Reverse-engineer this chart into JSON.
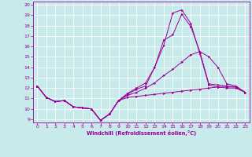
{
  "xlabel": "Windchill (Refroidissement éolien,°C)",
  "background_color": "#c8eaea",
  "line_color": "#990099",
  "grid_color": "#ffffff",
  "xlim": [
    -0.5,
    23.5
  ],
  "ylim": [
    8.7,
    20.3
  ],
  "yticks": [
    9,
    10,
    11,
    12,
    13,
    14,
    15,
    16,
    17,
    18,
    19,
    20
  ],
  "xticks": [
    0,
    1,
    2,
    3,
    4,
    5,
    6,
    7,
    8,
    9,
    10,
    11,
    12,
    13,
    14,
    15,
    16,
    17,
    18,
    19,
    20,
    21,
    22,
    23
  ],
  "hours": [
    0,
    1,
    2,
    3,
    4,
    5,
    6,
    7,
    8,
    9,
    10,
    11,
    12,
    13,
    14,
    15,
    16,
    17,
    18,
    19,
    20,
    21,
    22,
    23
  ],
  "line_bottom": [
    12.2,
    11.1,
    10.7,
    10.8,
    10.2,
    10.1,
    10.0,
    8.9,
    9.5,
    10.8,
    11.1,
    11.2,
    11.3,
    11.4,
    11.5,
    11.6,
    11.7,
    11.8,
    11.9,
    12.0,
    12.1,
    12.0,
    12.0,
    11.6
  ],
  "line_mid": [
    12.2,
    11.1,
    10.7,
    10.8,
    10.2,
    10.1,
    10.0,
    8.9,
    9.5,
    10.8,
    11.3,
    11.6,
    12.0,
    12.5,
    13.2,
    13.8,
    14.5,
    15.2,
    15.5,
    15.0,
    14.0,
    12.4,
    12.2,
    11.6
  ],
  "line_high": [
    12.2,
    11.1,
    10.7,
    10.8,
    10.2,
    10.1,
    10.0,
    8.9,
    9.5,
    10.8,
    11.5,
    12.0,
    12.5,
    14.0,
    16.1,
    19.2,
    19.5,
    18.2,
    15.3,
    12.3,
    12.1,
    12.1,
    12.1,
    11.6
  ],
  "line_high2": [
    12.2,
    11.1,
    10.7,
    10.8,
    10.2,
    10.1,
    10.0,
    8.9,
    9.5,
    10.8,
    11.4,
    11.9,
    12.2,
    14.0,
    16.6,
    17.1,
    19.1,
    17.9,
    15.5,
    12.4,
    12.3,
    12.2,
    12.1,
    11.6
  ]
}
